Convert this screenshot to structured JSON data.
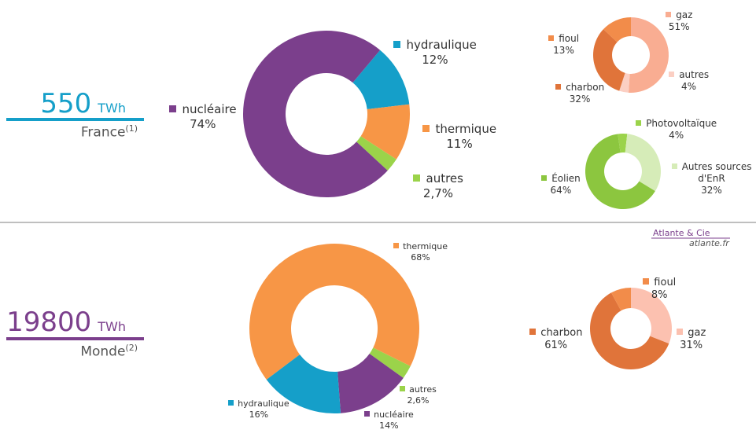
{
  "chart_data": [
    {
      "type": "donut",
      "categories": [
        "hydraulique",
        "thermique",
        "autres",
        "nucléaire"
      ],
      "values": [
        12,
        11,
        2.7,
        74
      ],
      "value_labels": [
        "12%",
        "11%",
        "2,7%",
        "74%"
      ],
      "colors": [
        "#159fc9",
        "#f79646",
        "#9bd34a",
        "#7b3f8c"
      ]
    },
    {
      "type": "donut",
      "categories": [
        "gaz",
        "autres",
        "charbon",
        "fioul"
      ],
      "values": [
        51,
        4,
        32,
        13
      ],
      "value_labels": [
        "51%",
        "4%",
        "32%",
        "13%"
      ],
      "colors": [
        "#f9ad92",
        "#fbcfc3",
        "#e0743a",
        "#f28c4a"
      ]
    },
    {
      "type": "donut",
      "categories": [
        "Photovoltaïque",
        "Autres sources d'EnR",
        "Éolien"
      ],
      "values": [
        4,
        32,
        64
      ],
      "value_labels": [
        "4%",
        "32%",
        "64%"
      ],
      "colors": [
        "#9bd34a",
        "#d6ecb8",
        "#8cc63f"
      ]
    },
    {
      "type": "donut",
      "categories": [
        "thermique",
        "autres",
        "nucléaire",
        "hydraulique"
      ],
      "values": [
        68,
        2.6,
        14,
        16
      ],
      "value_labels": [
        "68%",
        "2,6%",
        "14%",
        "16%"
      ],
      "colors": [
        "#f79646",
        "#9bd34a",
        "#7b3f8c",
        "#159fc9"
      ]
    },
    {
      "type": "donut",
      "categories": [
        "gaz",
        "charbon",
        "fioul"
      ],
      "values": [
        31,
        61,
        8
      ],
      "value_labels": [
        "31%",
        "61%",
        "8%"
      ],
      "colors": [
        "#fcc1b0",
        "#e0743a",
        "#f28c4a"
      ]
    }
  ],
  "sections": [
    {
      "total": "550",
      "unit": "TWh",
      "region": "France",
      "note": "(1)"
    },
    {
      "total": "19800",
      "unit": "TWh",
      "region": "Monde",
      "note": "(2)"
    }
  ],
  "credit": {
    "name": "Atlante & Cie",
    "site": "atlante.fr"
  }
}
